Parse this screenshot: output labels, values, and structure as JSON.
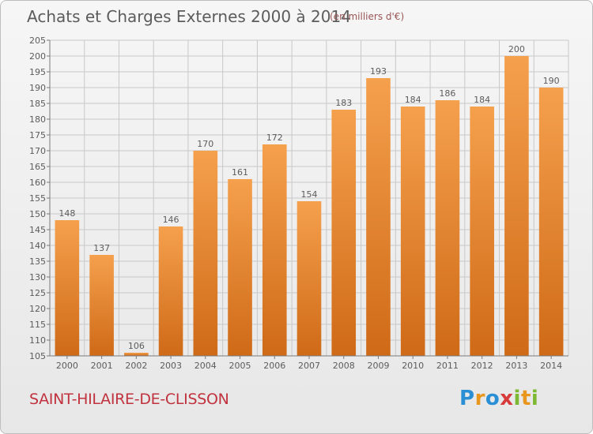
{
  "header": {
    "title": "Achats et Charges Externes 2000 à 2014",
    "subtitle": "(en milliers d'€)"
  },
  "footer": {
    "commune": "SAINT-HILAIRE-DE-CLISSON",
    "logo": [
      {
        "char": "P",
        "color": "#2b8fd6"
      },
      {
        "char": "r",
        "color": "#e8961e"
      },
      {
        "char": "o",
        "color": "#2b8fd6"
      },
      {
        "char": "x",
        "color": "#d63a3a"
      },
      {
        "char": "i",
        "color": "#7cb832"
      },
      {
        "char": "t",
        "color": "#e8961e"
      },
      {
        "char": "i",
        "color": "#7cb832"
      }
    ]
  },
  "colors": {
    "bar_top": "#f5a04d",
    "bar_bottom": "#cf6a17",
    "grid": "#c8c8c8",
    "axis": "#7a7a7a",
    "text": "#5c5c5c"
  },
  "chart_data": {
    "type": "bar",
    "title": "Achats et Charges Externes 2000 à 2014",
    "subtitle": "(en milliers d'€)",
    "categories": [
      "2000",
      "2001",
      "2002",
      "2003",
      "2004",
      "2005",
      "2006",
      "2007",
      "2008",
      "2009",
      "2010",
      "2011",
      "2012",
      "2013",
      "2014"
    ],
    "values": [
      148,
      137,
      106,
      146,
      170,
      161,
      172,
      154,
      183,
      193,
      184,
      186,
      184,
      200,
      190
    ],
    "ylim": [
      105,
      205
    ],
    "yticks": [
      105,
      110,
      115,
      120,
      125,
      130,
      135,
      140,
      145,
      150,
      155,
      160,
      165,
      170,
      175,
      180,
      185,
      190,
      195,
      200,
      205
    ],
    "grid": true,
    "xlabel": "",
    "ylabel": ""
  }
}
